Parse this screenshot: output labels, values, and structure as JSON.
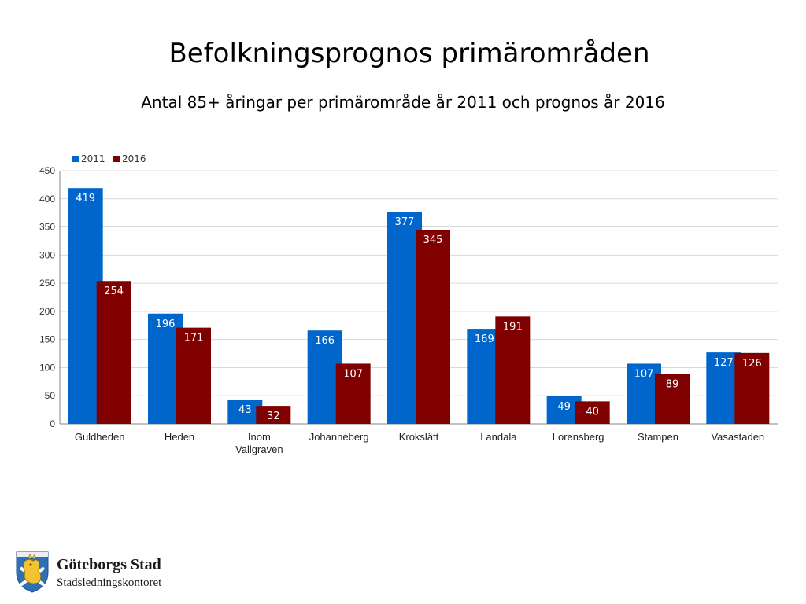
{
  "slide": {
    "title": "Befolkningsprognos primärområden",
    "subtitle": "Antal 85+ åringar per primärområde år 2011 och prognos år 2016"
  },
  "chart_data": {
    "type": "bar",
    "title": "",
    "xlabel": "",
    "ylabel": "",
    "categories": [
      "Guldheden",
      "Heden",
      "Inom Vallgraven",
      "Johanneberg",
      "Krokslätt",
      "Landala",
      "Lorensberg",
      "Stampen",
      "Vasastaden"
    ],
    "series": [
      {
        "name": "2011",
        "color": "#0066CC",
        "values": [
          419,
          196,
          43,
          166,
          377,
          169,
          49,
          107,
          127
        ]
      },
      {
        "name": "2016",
        "color": "#800000",
        "values": [
          254,
          171,
          32,
          107,
          345,
          191,
          40,
          89,
          126
        ]
      }
    ],
    "ylim": [
      0,
      450
    ],
    "yticks": [
      0,
      50,
      100,
      150,
      200,
      250,
      300,
      350,
      400,
      450
    ],
    "grid": true,
    "legend": "top-left",
    "data_labels": true
  },
  "footer": {
    "org_name": "Göteborgs Stad",
    "department": "Stadsledningskontoret",
    "logo_icon": "gothenburg-coat-of-arms-icon"
  }
}
